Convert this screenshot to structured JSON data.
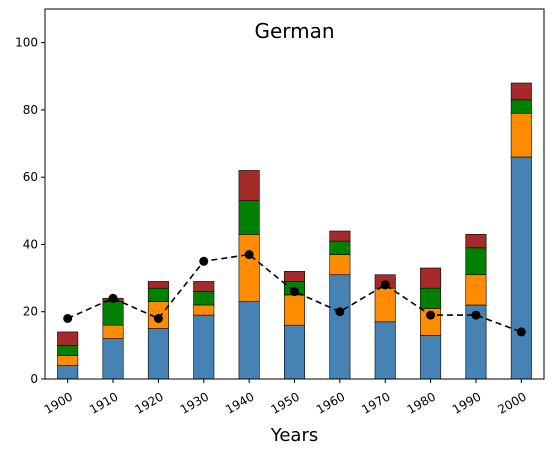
{
  "chart_data": {
    "type": "bar",
    "stacked": true,
    "title": "German",
    "xlabel": "Years",
    "ylabel": "",
    "ylim": [
      0,
      110
    ],
    "yticks": [
      0,
      20,
      40,
      60,
      80,
      100
    ],
    "grid": false,
    "categories": [
      "1900",
      "1910",
      "1920",
      "1930",
      "1940",
      "1950",
      "1960",
      "1970",
      "1980",
      "1990",
      "2000"
    ],
    "series": [
      {
        "color": "#4682b4",
        "values": [
          4,
          12,
          15,
          19,
          23,
          16,
          31,
          17,
          13,
          22,
          66
        ]
      },
      {
        "color": "#ff8c00",
        "values": [
          3,
          4,
          8,
          3,
          20,
          9,
          6,
          10,
          8,
          9,
          13
        ]
      },
      {
        "color": "#008000",
        "values": [
          3,
          7,
          4,
          4,
          10,
          4,
          4,
          0,
          6,
          8,
          4
        ]
      },
      {
        "color": "#a52a2a",
        "values": [
          4,
          1,
          2,
          3,
          9,
          3,
          3,
          4,
          6,
          4,
          5
        ]
      }
    ],
    "line": {
      "color": "#000000",
      "style": "dashed",
      "marker": "circle",
      "values": [
        18,
        24,
        18,
        35,
        37,
        26,
        20,
        28,
        19,
        19,
        14
      ]
    }
  }
}
